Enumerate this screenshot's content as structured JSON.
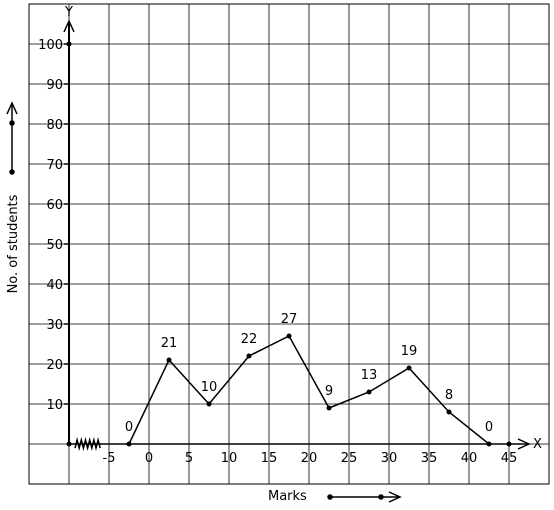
{
  "chart_data": {
    "type": "line",
    "title": "",
    "xlabel": "Marks",
    "ylabel": "No. of students",
    "axis_letters": {
      "x": "X",
      "y": "Y"
    },
    "x_ticks": [
      "-5",
      "0",
      "5",
      "10",
      "15",
      "20",
      "25",
      "30",
      "35",
      "40",
      "45"
    ],
    "y_ticks": [
      "10",
      "20",
      "30",
      "40",
      "50",
      "60",
      "70",
      "80",
      "90",
      "100"
    ],
    "xlim": [
      -10,
      45
    ],
    "ylim": [
      0,
      100
    ],
    "grid": true,
    "axis_break": true,
    "series": [
      {
        "x": [
          -2.5,
          2.5,
          7.5,
          12.5,
          17.5,
          22.5,
          27.5,
          32.5,
          37.5,
          42.5
        ],
        "values": [
          0,
          21,
          10,
          22,
          27,
          9,
          13,
          19,
          8,
          0
        ],
        "labels": [
          "0",
          "21",
          "10",
          "22",
          "27",
          "9",
          "13",
          "19",
          "8",
          "0"
        ]
      }
    ]
  }
}
